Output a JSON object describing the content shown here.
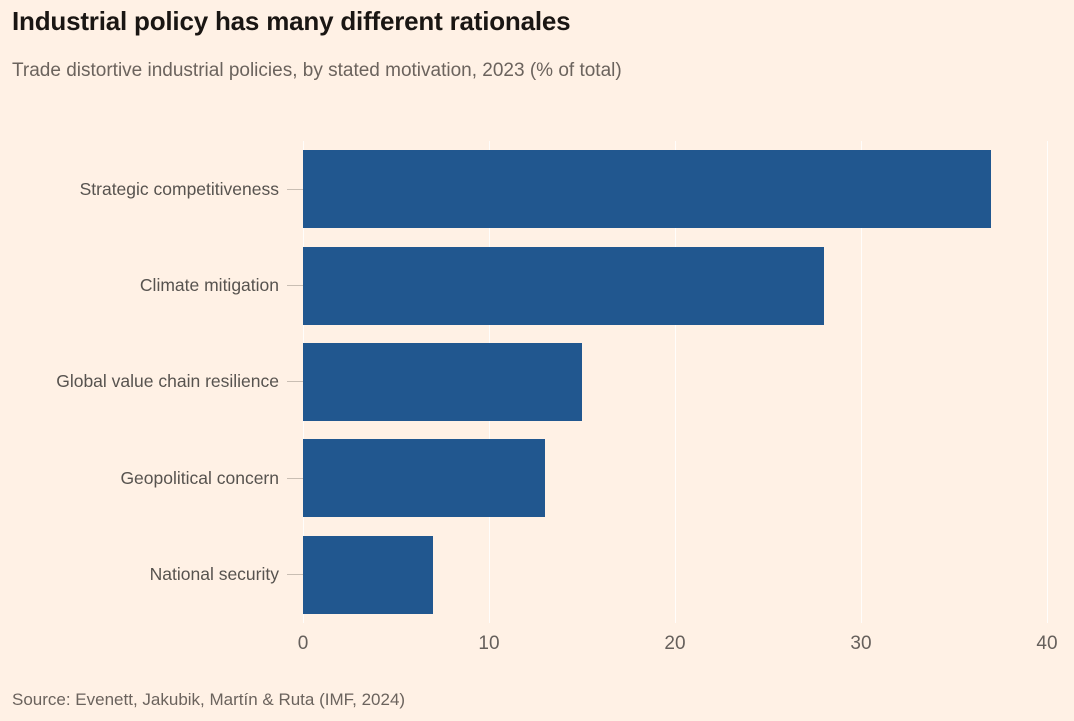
{
  "chart": {
    "title": "Industrial policy has many different rationales",
    "subtitle": "Trade distortive industrial policies, by stated motivation, 2023 (% of total)",
    "source": "Source: Evenett, Jakubik, Martín & Ruta (IMF, 2024)"
  },
  "chart_data": {
    "type": "bar",
    "orientation": "horizontal",
    "title": "Industrial policy has many different rationales",
    "subtitle": "Trade distortive industrial policies, by stated motivation, 2023 (% of total)",
    "categories": [
      "Strategic competitiveness",
      "Climate mitigation",
      "Global value chain resilience",
      "Geopolitical concern",
      "National security"
    ],
    "values": [
      37,
      28,
      15,
      13,
      7
    ],
    "xlabel": "",
    "ylabel": "",
    "xlim": [
      0,
      40
    ],
    "xticks": [
      0,
      10,
      20,
      30,
      40
    ],
    "grid": "vertical-on",
    "legend": "none",
    "unit": "% of total",
    "source": "Source: Evenett, Jakubik, Martín & Ruta (IMF, 2024)",
    "colors": {
      "background": "#fff1e5",
      "bar": "#21578f",
      "title_text": "#1a1613",
      "secondary_text": "#66605c",
      "category_text": "#57534f",
      "gridline": "rgba(255,255,255,0.85)",
      "category_tick": "#c9beb3"
    }
  }
}
